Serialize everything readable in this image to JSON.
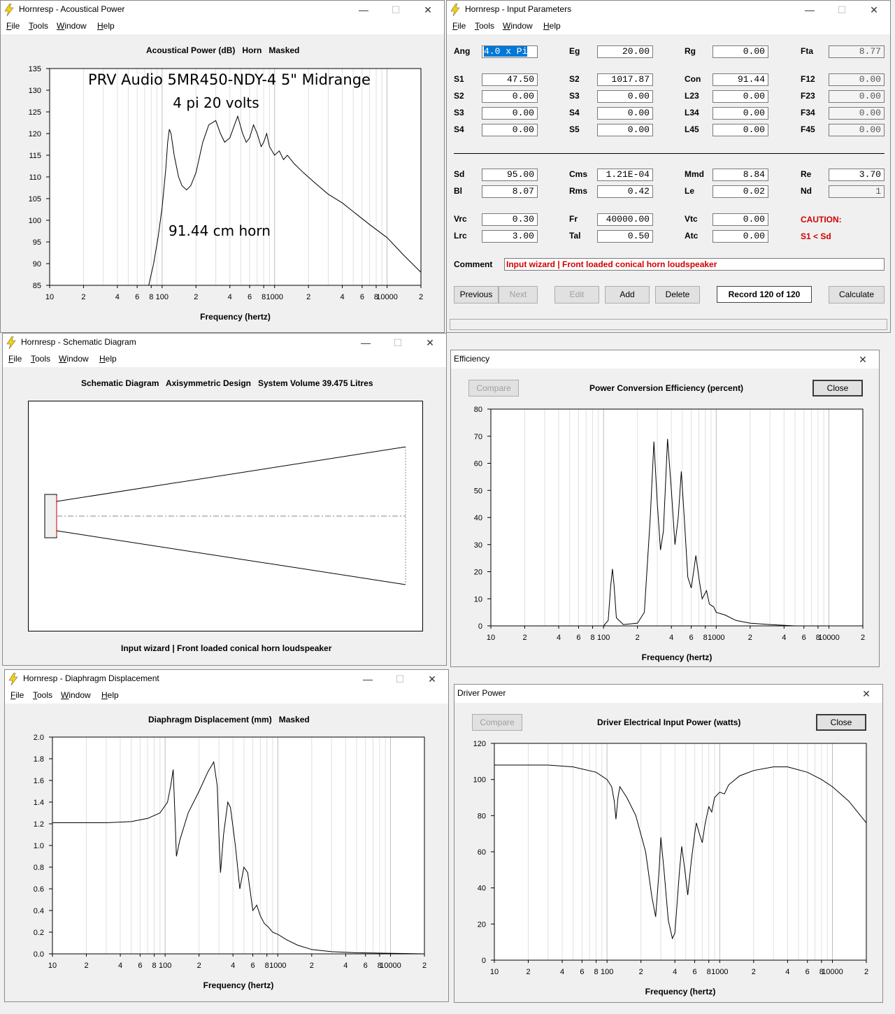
{
  "menu": [
    "File",
    "Tools",
    "Window",
    "Help"
  ],
  "windows": {
    "acoustic": {
      "title": "Hornresp - Acoustical Power"
    },
    "input": {
      "title": "Hornresp - Input Parameters"
    },
    "schematic": {
      "title": "Hornresp - Schematic Diagram"
    },
    "displacement": {
      "title": "Hornresp - Diaphragm Displacement"
    },
    "efficiency": {
      "title": "Efficiency"
    },
    "driver": {
      "title": "Driver Power"
    }
  },
  "acoustic_chart": {
    "type": "line",
    "title": "Acoustical Power (dB)   Horn   Masked",
    "xlabel": "Frequency (hertz)",
    "annotation1": "PRV Audio 5MR450-NDY-4 5\" Midrange",
    "annotation2": "4 pi   20 volts",
    "annotation3": "91.44 cm horn",
    "xscale": "log",
    "xlim": [
      10,
      20000
    ],
    "ylim": [
      85,
      135
    ],
    "yticks": [
      "85",
      "90",
      "95",
      "100",
      "105",
      "110",
      "115",
      "120",
      "125",
      "130",
      "135"
    ],
    "xticks": [
      [
        10,
        "10"
      ],
      [
        20,
        "2"
      ],
      [
        40,
        "4"
      ],
      [
        60,
        "6"
      ],
      [
        80,
        "8"
      ],
      [
        100,
        "100"
      ],
      [
        200,
        "2"
      ],
      [
        400,
        "4"
      ],
      [
        600,
        "6"
      ],
      [
        800,
        "8"
      ],
      [
        1000,
        "1000"
      ],
      [
        2000,
        "2"
      ],
      [
        4000,
        "4"
      ],
      [
        6000,
        "6"
      ],
      [
        8000,
        "8"
      ],
      [
        10000,
        "10000"
      ],
      [
        20000,
        "2"
      ]
    ],
    "points": [
      [
        76,
        85
      ],
      [
        84,
        90
      ],
      [
        92,
        96
      ],
      [
        100,
        103
      ],
      [
        108,
        112
      ],
      [
        112,
        118
      ],
      [
        116,
        121
      ],
      [
        120,
        120
      ],
      [
        128,
        115
      ],
      [
        140,
        110
      ],
      [
        150,
        108
      ],
      [
        165,
        107
      ],
      [
        180,
        108
      ],
      [
        200,
        111
      ],
      [
        230,
        118
      ],
      [
        260,
        122
      ],
      [
        300,
        123
      ],
      [
        330,
        120
      ],
      [
        360,
        118
      ],
      [
        400,
        119
      ],
      [
        440,
        122
      ],
      [
        470,
        124
      ],
      [
        520,
        120
      ],
      [
        560,
        118
      ],
      [
        600,
        119
      ],
      [
        650,
        122
      ],
      [
        700,
        120
      ],
      [
        760,
        117
      ],
      [
        800,
        118
      ],
      [
        850,
        120
      ],
      [
        900,
        117
      ],
      [
        1000,
        115
      ],
      [
        1100,
        116
      ],
      [
        1200,
        114
      ],
      [
        1300,
        115
      ],
      [
        1500,
        113
      ],
      [
        1800,
        111
      ],
      [
        2200,
        109
      ],
      [
        3000,
        106
      ],
      [
        4000,
        104
      ],
      [
        5000,
        102
      ],
      [
        7000,
        99
      ],
      [
        10000,
        96
      ],
      [
        14000,
        92
      ],
      [
        20000,
        88
      ]
    ]
  },
  "input_params": {
    "rows": [
      [
        [
          "Ang",
          "4.0 x Pi"
        ],
        [
          "Eg",
          "20.00"
        ],
        [
          "Rg",
          "0.00"
        ],
        [
          "Fta",
          "8.77"
        ]
      ],
      [
        [
          "S1",
          "47.50"
        ],
        [
          "S2",
          "1017.87"
        ],
        [
          "Con",
          "91.44"
        ],
        [
          "F12",
          "0.00"
        ]
      ],
      [
        [
          "S2",
          "0.00"
        ],
        [
          "S3",
          "0.00"
        ],
        [
          "L23",
          "0.00"
        ],
        [
          "F23",
          "0.00"
        ]
      ],
      [
        [
          "S3",
          "0.00"
        ],
        [
          "S4",
          "0.00"
        ],
        [
          "L34",
          "0.00"
        ],
        [
          "F34",
          "0.00"
        ]
      ],
      [
        [
          "S4",
          "0.00"
        ],
        [
          "S5",
          "0.00"
        ],
        [
          "L45",
          "0.00"
        ],
        [
          "F45",
          "0.00"
        ]
      ]
    ],
    "driver_rows": [
      [
        [
          "Sd",
          "95.00"
        ],
        [
          "Cms",
          "1.21E-04"
        ],
        [
          "Mmd",
          "8.84"
        ],
        [
          "Re",
          "3.70"
        ]
      ],
      [
        [
          "Bl",
          "8.07"
        ],
        [
          "Rms",
          "0.42"
        ],
        [
          "Le",
          "0.02"
        ],
        [
          "Nd",
          "1"
        ]
      ]
    ],
    "chamber_rows": [
      [
        [
          "Vrc",
          "0.30"
        ],
        [
          "Fr",
          "40000.00"
        ],
        [
          "Vtc",
          "0.00"
        ]
      ],
      [
        [
          "Lrc",
          "3.00"
        ],
        [
          "Tal",
          "0.50"
        ],
        [
          "Atc",
          "0.00"
        ]
      ]
    ],
    "caution_label": "CAUTION:",
    "caution_text": "S1 < Sd",
    "comment_label": "Comment",
    "comment": "Input wizard | Front loaded conical horn loudspeaker",
    "buttons": {
      "previous": "Previous",
      "next": "Next",
      "edit": "Edit",
      "add": "Add",
      "delete": "Delete",
      "record": "Record 120 of 120",
      "calculate": "Calculate"
    }
  },
  "schematic": {
    "title": "Schematic Diagram   Axisymmetric Design   System Volume 39.475 Litres",
    "caption": "Input wizard | Front loaded conical horn loudspeaker"
  },
  "efficiency_chart": {
    "type": "line",
    "title": "Power Conversion Efficiency (percent)",
    "xlabel": "Frequency (hertz)",
    "compare_label": "Compare",
    "close_label": "Close",
    "xscale": "log",
    "xlim": [
      10,
      20000
    ],
    "ylim": [
      0,
      80
    ],
    "yticks": [
      "0",
      "10",
      "20",
      "30",
      "40",
      "50",
      "60",
      "70",
      "80"
    ],
    "xticks": [
      [
        10,
        "10"
      ],
      [
        20,
        "2"
      ],
      [
        40,
        "4"
      ],
      [
        60,
        "6"
      ],
      [
        80,
        "8"
      ],
      [
        100,
        "100"
      ],
      [
        200,
        "2"
      ],
      [
        400,
        "4"
      ],
      [
        600,
        "6"
      ],
      [
        800,
        "8"
      ],
      [
        1000,
        "1000"
      ],
      [
        2000,
        "2"
      ],
      [
        4000,
        "4"
      ],
      [
        6000,
        "6"
      ],
      [
        8000,
        "8"
      ],
      [
        10000,
        "10000"
      ],
      [
        20000,
        "2"
      ]
    ],
    "points": [
      [
        10,
        0
      ],
      [
        100,
        0
      ],
      [
        110,
        2
      ],
      [
        116,
        15
      ],
      [
        120,
        21
      ],
      [
        124,
        15
      ],
      [
        130,
        3
      ],
      [
        150,
        0.5
      ],
      [
        200,
        1
      ],
      [
        230,
        5
      ],
      [
        260,
        40
      ],
      [
        280,
        68
      ],
      [
        300,
        45
      ],
      [
        320,
        28
      ],
      [
        340,
        35
      ],
      [
        370,
        69
      ],
      [
        400,
        50
      ],
      [
        430,
        30
      ],
      [
        460,
        40
      ],
      [
        490,
        57
      ],
      [
        520,
        40
      ],
      [
        560,
        18
      ],
      [
        600,
        14
      ],
      [
        630,
        20
      ],
      [
        660,
        26
      ],
      [
        700,
        18
      ],
      [
        750,
        10
      ],
      [
        820,
        13
      ],
      [
        870,
        8
      ],
      [
        950,
        7
      ],
      [
        1000,
        5
      ],
      [
        1200,
        4
      ],
      [
        1500,
        2
      ],
      [
        2000,
        1
      ],
      [
        3000,
        0.5
      ],
      [
        5000,
        0
      ],
      [
        20000,
        0
      ]
    ]
  },
  "displacement_chart": {
    "type": "line",
    "title": "Diaphragm Displacement (mm)   Masked",
    "xlabel": "Frequency (hertz)",
    "xscale": "log",
    "xlim": [
      10,
      20000
    ],
    "ylim": [
      0,
      2
    ],
    "yticks": [
      "0.0",
      "0.2",
      "0.4",
      "0.6",
      "0.8",
      "1.0",
      "1.2",
      "1.4",
      "1.6",
      "1.8",
      "2.0"
    ],
    "xticks": [
      [
        10,
        "10"
      ],
      [
        20,
        "2"
      ],
      [
        40,
        "4"
      ],
      [
        60,
        "6"
      ],
      [
        80,
        "8"
      ],
      [
        100,
        "100"
      ],
      [
        200,
        "2"
      ],
      [
        400,
        "4"
      ],
      [
        600,
        "6"
      ],
      [
        800,
        "8"
      ],
      [
        1000,
        "1000"
      ],
      [
        2000,
        "2"
      ],
      [
        4000,
        "4"
      ],
      [
        6000,
        "6"
      ],
      [
        8000,
        "8"
      ],
      [
        10000,
        "10000"
      ],
      [
        20000,
        "2"
      ]
    ],
    "points": [
      [
        10,
        1.21
      ],
      [
        30,
        1.21
      ],
      [
        50,
        1.22
      ],
      [
        70,
        1.25
      ],
      [
        90,
        1.3
      ],
      [
        105,
        1.4
      ],
      [
        112,
        1.55
      ],
      [
        118,
        1.7
      ],
      [
        122,
        1.3
      ],
      [
        126,
        0.9
      ],
      [
        135,
        1.05
      ],
      [
        160,
        1.3
      ],
      [
        200,
        1.5
      ],
      [
        240,
        1.68
      ],
      [
        270,
        1.77
      ],
      [
        290,
        1.55
      ],
      [
        300,
        1.1
      ],
      [
        310,
        0.75
      ],
      [
        330,
        1.1
      ],
      [
        360,
        1.4
      ],
      [
        380,
        1.35
      ],
      [
        420,
        1.0
      ],
      [
        460,
        0.6
      ],
      [
        500,
        0.8
      ],
      [
        540,
        0.75
      ],
      [
        600,
        0.4
      ],
      [
        650,
        0.45
      ],
      [
        700,
        0.35
      ],
      [
        760,
        0.28
      ],
      [
        820,
        0.25
      ],
      [
        900,
        0.2
      ],
      [
        1000,
        0.18
      ],
      [
        1200,
        0.13
      ],
      [
        1500,
        0.08
      ],
      [
        2000,
        0.04
      ],
      [
        3000,
        0.02
      ],
      [
        5000,
        0.01
      ],
      [
        20000,
        0.0
      ]
    ]
  },
  "driver_chart": {
    "type": "line",
    "title": "Driver Electrical Input Power (watts)",
    "xlabel": "Frequency (hertz)",
    "compare_label": "Compare",
    "close_label": "Close",
    "xscale": "log",
    "xlim": [
      10,
      20000
    ],
    "ylim": [
      0,
      120
    ],
    "yticks": [
      "0",
      "20",
      "40",
      "60",
      "80",
      "100",
      "120"
    ],
    "xticks": [
      [
        10,
        "10"
      ],
      [
        20,
        "2"
      ],
      [
        40,
        "4"
      ],
      [
        60,
        "6"
      ],
      [
        80,
        "8"
      ],
      [
        100,
        "100"
      ],
      [
        200,
        "2"
      ],
      [
        400,
        "4"
      ],
      [
        600,
        "6"
      ],
      [
        800,
        "8"
      ],
      [
        1000,
        "1000"
      ],
      [
        2000,
        "2"
      ],
      [
        4000,
        "4"
      ],
      [
        6000,
        "6"
      ],
      [
        8000,
        "8"
      ],
      [
        10000,
        "10000"
      ],
      [
        20000,
        "2"
      ]
    ],
    "points": [
      [
        10,
        108
      ],
      [
        30,
        108
      ],
      [
        50,
        107
      ],
      [
        80,
        104
      ],
      [
        100,
        100
      ],
      [
        110,
        96
      ],
      [
        116,
        88
      ],
      [
        120,
        78
      ],
      [
        125,
        90
      ],
      [
        130,
        96
      ],
      [
        150,
        90
      ],
      [
        180,
        80
      ],
      [
        220,
        60
      ],
      [
        250,
        35
      ],
      [
        270,
        24
      ],
      [
        290,
        50
      ],
      [
        300,
        68
      ],
      [
        320,
        50
      ],
      [
        350,
        22
      ],
      [
        380,
        12
      ],
      [
        400,
        15
      ],
      [
        440,
        50
      ],
      [
        460,
        63
      ],
      [
        490,
        50
      ],
      [
        520,
        36
      ],
      [
        560,
        55
      ],
      [
        600,
        70
      ],
      [
        620,
        76
      ],
      [
        660,
        70
      ],
      [
        700,
        65
      ],
      [
        740,
        75
      ],
      [
        800,
        85
      ],
      [
        850,
        82
      ],
      [
        900,
        90
      ],
      [
        1000,
        93
      ],
      [
        1100,
        92
      ],
      [
        1200,
        97
      ],
      [
        1500,
        102
      ],
      [
        2000,
        105
      ],
      [
        3000,
        107
      ],
      [
        4000,
        107
      ],
      [
        6000,
        104
      ],
      [
        8000,
        100
      ],
      [
        10000,
        96
      ],
      [
        14000,
        88
      ],
      [
        20000,
        76
      ]
    ]
  }
}
